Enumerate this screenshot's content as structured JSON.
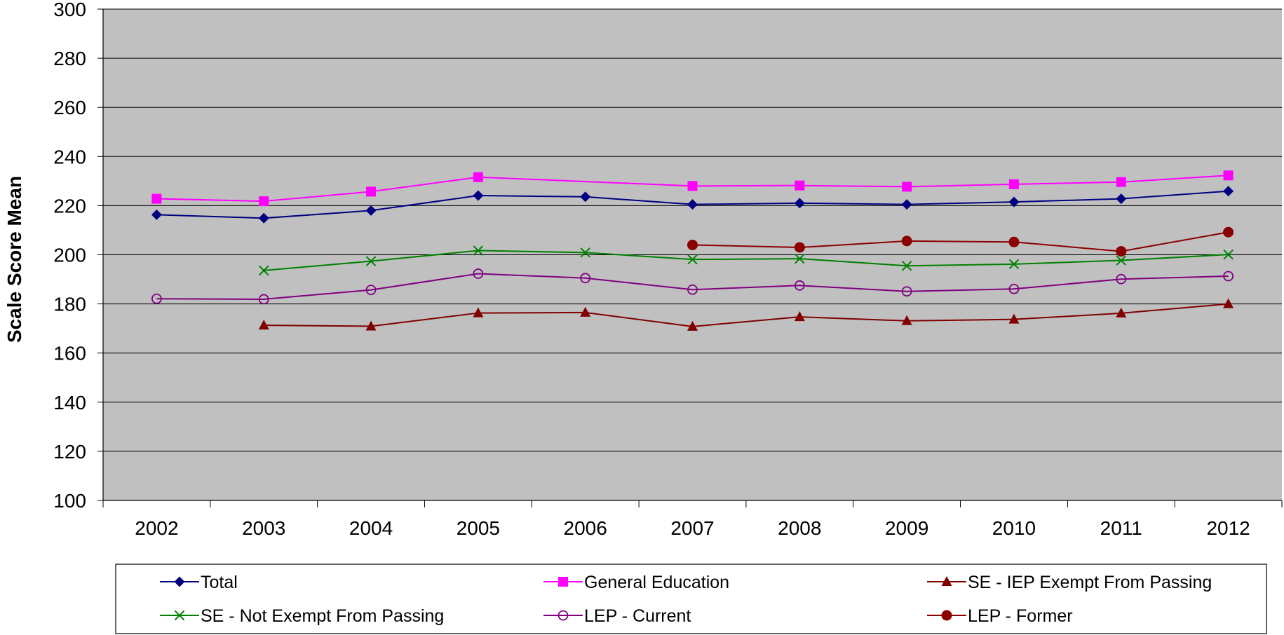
{
  "chart_data": {
    "type": "line",
    "title": "",
    "xlabel": "",
    "ylabel": "Scale Score Mean",
    "ylim": [
      100,
      300
    ],
    "y_ticks": [
      100,
      120,
      140,
      160,
      180,
      200,
      220,
      240,
      260,
      280,
      300
    ],
    "categories": [
      "2002",
      "2003",
      "2004",
      "2005",
      "2006",
      "2007",
      "2008",
      "2009",
      "2010",
      "2011",
      "2012"
    ],
    "grid": "horizontal",
    "plot_background": "#c0c0c0",
    "legend_position": "bottom",
    "series": [
      {
        "name": "Total",
        "color": "#000080",
        "marker": "diamond",
        "values": [
          216.3,
          214.9,
          218.0,
          224.1,
          223.6,
          220.5,
          221.0,
          220.5,
          221.5,
          222.8,
          225.9
        ]
      },
      {
        "name": "General Education",
        "color": "#ff00ff",
        "marker": "square",
        "values": [
          222.8,
          221.8,
          225.7,
          231.6,
          null,
          228.0,
          228.2,
          227.7,
          228.7,
          229.6,
          232.3
        ]
      },
      {
        "name": "SE - IEP Exempt From Passing",
        "color": "#800000",
        "marker": "triangle",
        "values": [
          null,
          171.3,
          170.9,
          176.3,
          176.5,
          170.8,
          174.7,
          173.1,
          173.7,
          176.2,
          180.0
        ]
      },
      {
        "name": "SE - Not Exempt From Passing",
        "color": "#008000",
        "marker": "x",
        "values": [
          null,
          193.6,
          197.4,
          201.7,
          200.9,
          198.1,
          198.4,
          195.5,
          196.2,
          197.7,
          200.1
        ]
      },
      {
        "name": "LEP - Current",
        "color": "#800080",
        "marker": "open-circle",
        "values": [
          182.1,
          181.9,
          185.7,
          192.3,
          190.5,
          185.8,
          187.5,
          185.1,
          186.1,
          190.1,
          191.3
        ]
      },
      {
        "name": "LEP - Former",
        "color": "#8b0000",
        "marker": "circle",
        "values": [
          null,
          null,
          null,
          null,
          null,
          204.0,
          203.0,
          205.6,
          205.2,
          201.4,
          209.2
        ]
      }
    ]
  }
}
